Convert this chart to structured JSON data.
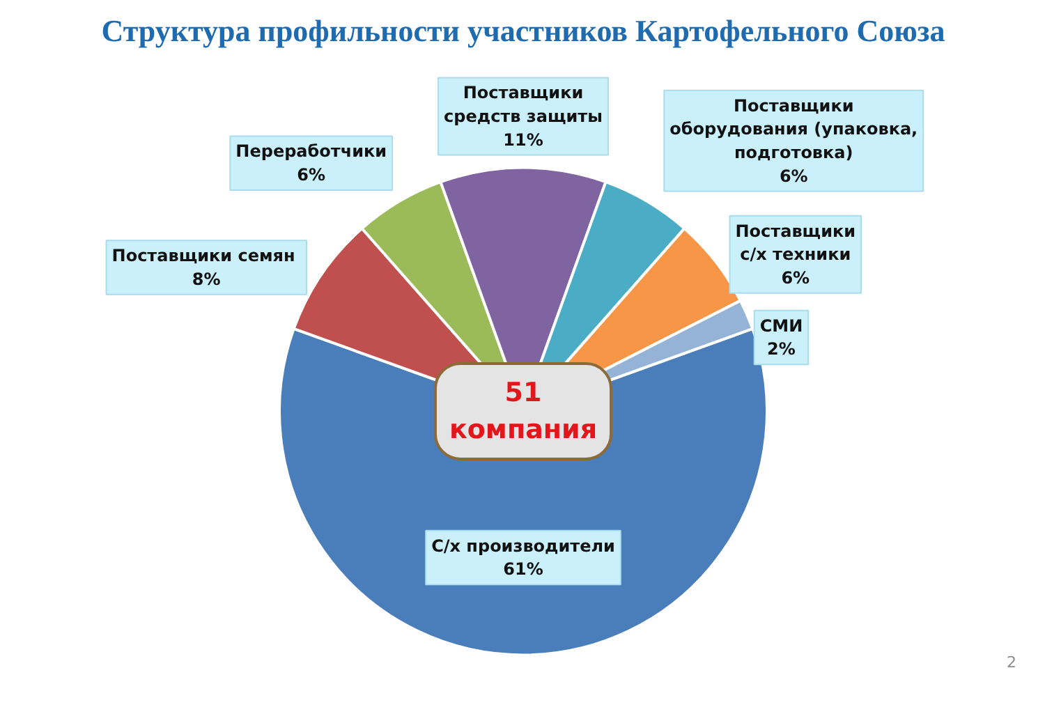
{
  "chart_data": {
    "type": "pie",
    "title": "Структура профильности участников Картофельного Союза",
    "categories": [
      "С/х производители",
      "Поставщики  семян",
      "Переработчики",
      "Поставщики\nсредств защиты",
      "Поставщики\nоборудования (упаковка,\nподготовка)",
      "Поставщики\nс/х техники",
      "СМИ"
    ],
    "values": [
      61,
      8,
      6,
      11,
      6,
      6,
      2
    ],
    "colors": [
      "#4a7ebb",
      "#c0504d",
      "#9bbb59",
      "#8064a2",
      "#4bacc6",
      "#f79646",
      "#95b3d7"
    ],
    "value_labels": [
      "61%",
      "8%",
      "6%",
      "11%",
      "6%",
      "6%",
      "2%"
    ],
    "annotations": [
      "51\nкомпания",
      "2"
    ]
  }
}
